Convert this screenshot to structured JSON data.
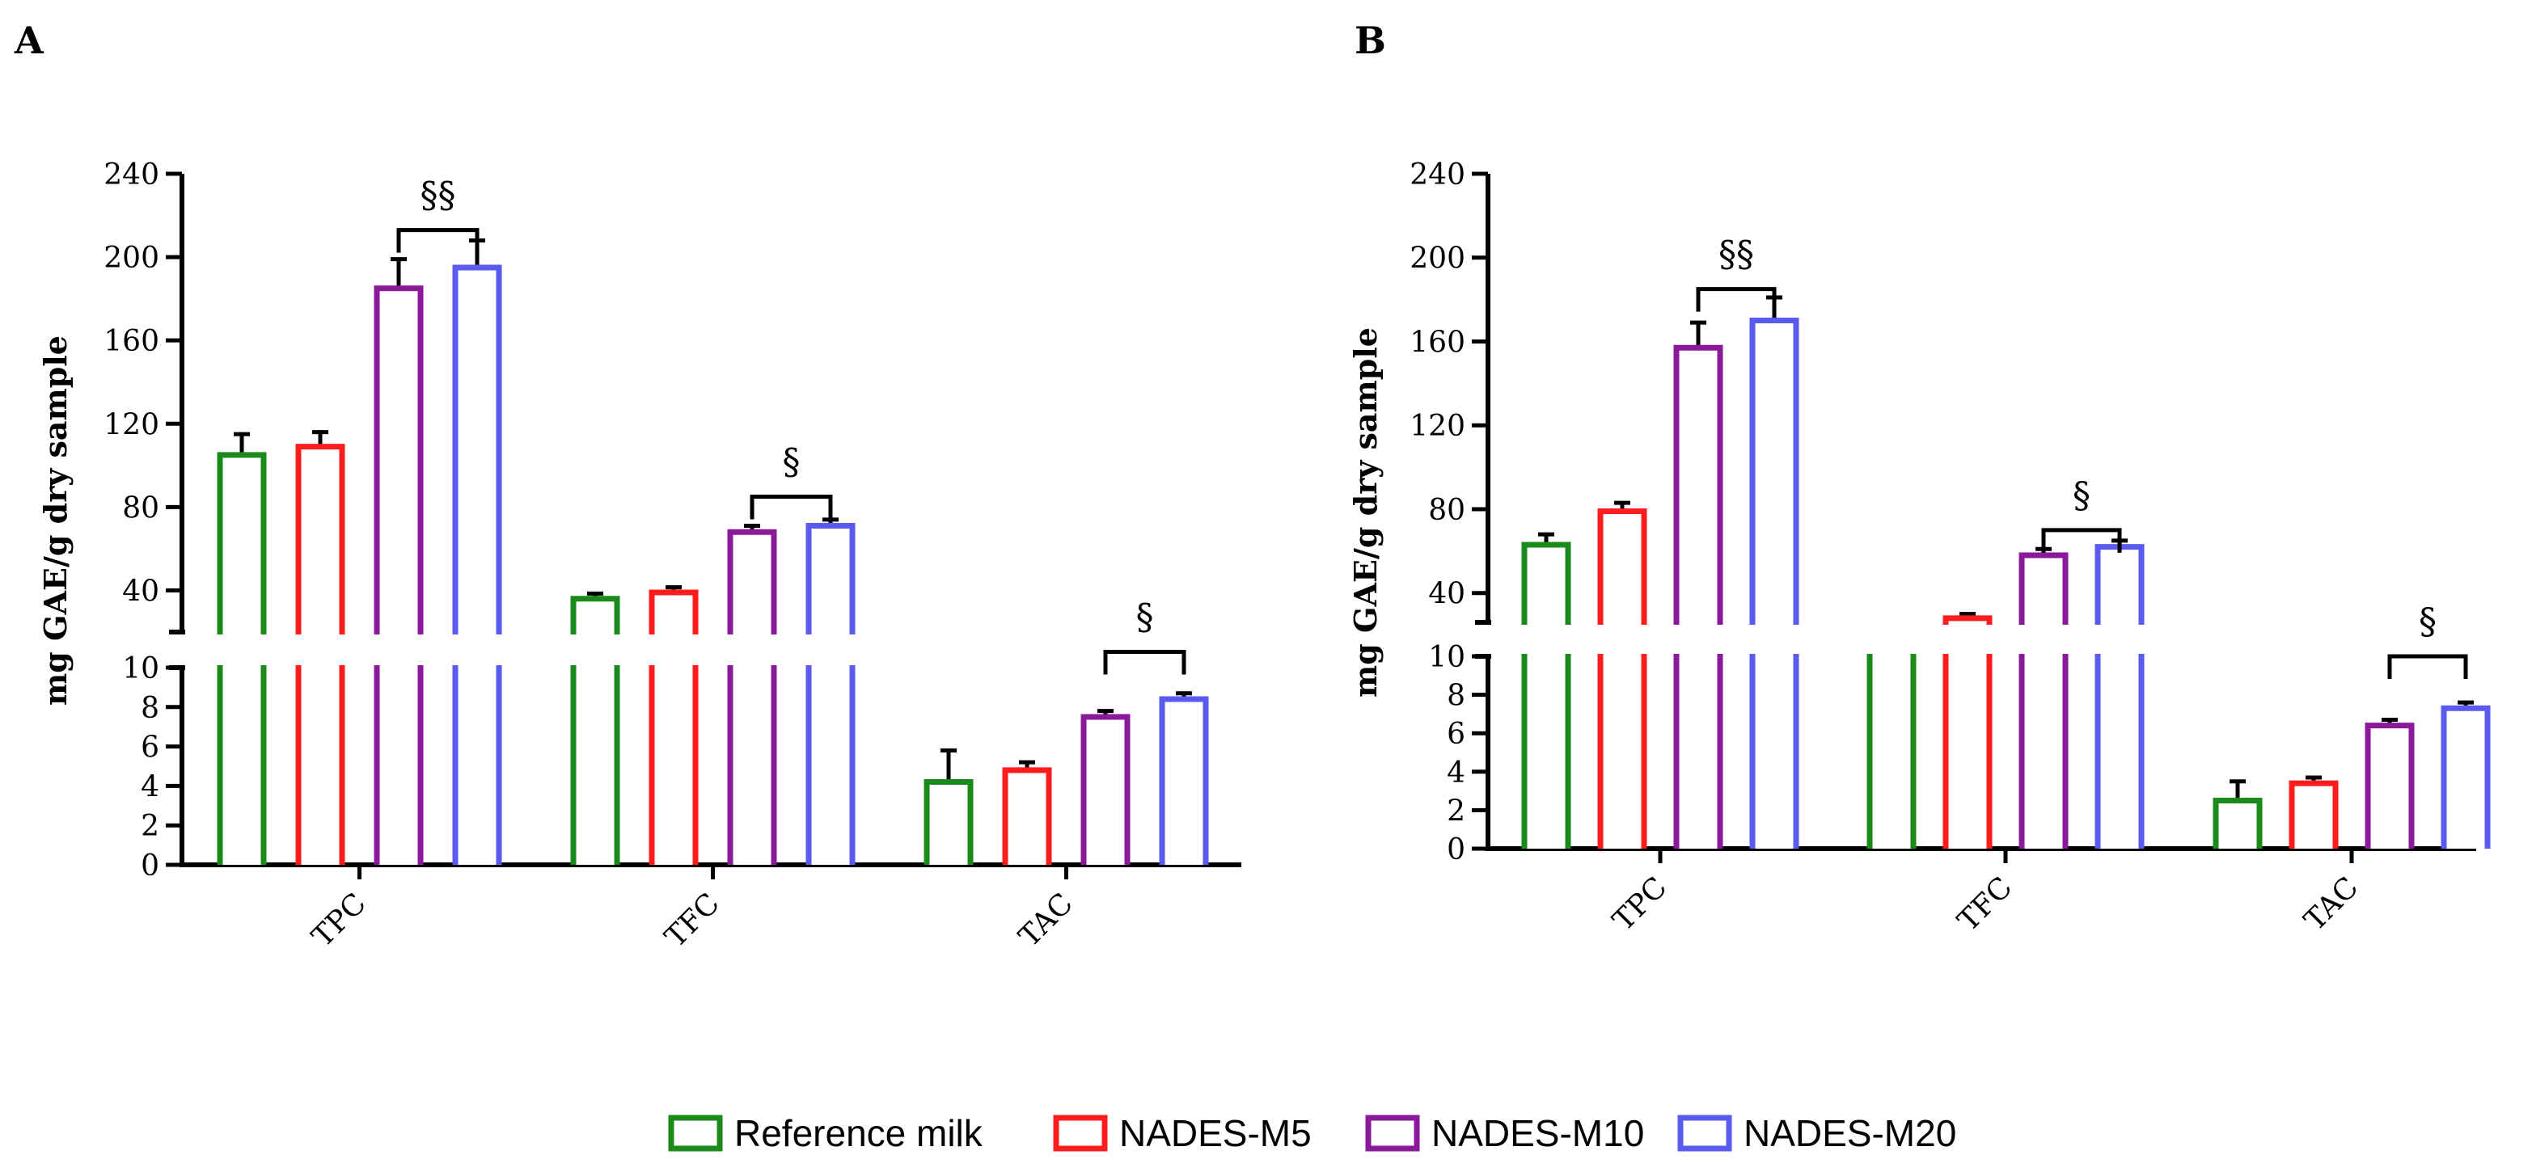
{
  "figure": {
    "legend": {
      "placement": "bottom-center",
      "entries": [
        {
          "label": "Reference milk",
          "color": "#1a8a1a"
        },
        {
          "label": "NADES-M5",
          "color": "#ff1c1c"
        },
        {
          "label": "NADES-M10",
          "color": "#8b1a9b"
        },
        {
          "label": "NADES-M20",
          "color": "#5a5aee"
        }
      ]
    }
  },
  "chart_data": [
    {
      "panel_label": "A",
      "type": "bar",
      "title": "",
      "xlabel": "",
      "ylabel": "mg GAE/g dry sample",
      "categories": [
        "TPC",
        "TFC",
        "TAC"
      ],
      "broken_axis": true,
      "ylim_lower": [
        0,
        10
      ],
      "ylim_upper": [
        20,
        240
      ],
      "yticks_lower": [
        "0",
        "2",
        "4",
        "6",
        "8",
        "10"
      ],
      "yticks_upper": [
        "40",
        "80",
        "120",
        "160",
        "200",
        "240"
      ],
      "series": [
        {
          "name": "Reference milk",
          "color": "#1a8a1a",
          "values": [
            105,
            36,
            4.2
          ],
          "errors": [
            10,
            2.5,
            1.6
          ]
        },
        {
          "name": "NADES-M5",
          "color": "#ff1c1c",
          "values": [
            109,
            39,
            4.8
          ],
          "errors": [
            7,
            2.5,
            0.4
          ]
        },
        {
          "name": "NADES-M10",
          "color": "#8b1a9b",
          "values": [
            185,
            68,
            7.5
          ],
          "errors": [
            14,
            3,
            0.3
          ]
        },
        {
          "name": "NADES-M20",
          "color": "#5a5aee",
          "values": [
            195,
            71,
            8.4
          ],
          "errors": [
            13,
            3,
            0.3
          ]
        }
      ],
      "annotations": [
        {
          "text": "§§",
          "category": 0,
          "between": [
            2,
            3
          ],
          "y": 213
        },
        {
          "text": "§",
          "category": 1,
          "between": [
            2,
            3
          ],
          "y": 85
        },
        {
          "text": "§",
          "category": 2,
          "between": [
            2,
            3
          ],
          "y": 10.5
        }
      ],
      "grid": false,
      "legend": "bottom"
    },
    {
      "panel_label": "B",
      "type": "bar",
      "title": "",
      "xlabel": "",
      "ylabel": "mg GAE/g dry sample",
      "categories": [
        "TPC",
        "TFC",
        "TAC"
      ],
      "broken_axis": true,
      "ylim_lower": [
        0,
        10
      ],
      "ylim_upper": [
        26,
        240
      ],
      "yticks_lower": [
        "0",
        "2",
        "4",
        "6",
        "8",
        "10"
      ],
      "yticks_upper": [
        "40",
        "80",
        "120",
        "160",
        "200",
        "240"
      ],
      "series": [
        {
          "name": "Reference milk",
          "color": "#1a8a1a",
          "values": [
            63,
            21,
            2.5
          ],
          "errors": [
            5,
            1.5,
            1
          ]
        },
        {
          "name": "NADES-M5",
          "color": "#ff1c1c",
          "values": [
            79,
            28,
            3.4
          ],
          "errors": [
            4,
            2,
            0.3
          ]
        },
        {
          "name": "NADES-M10",
          "color": "#8b1a9b",
          "values": [
            157,
            58,
            6.4
          ],
          "errors": [
            12,
            3,
            0.3
          ]
        },
        {
          "name": "NADES-M20",
          "color": "#5a5aee",
          "values": [
            170,
            62,
            7.3
          ],
          "errors": [
            11,
            3,
            0.3
          ]
        }
      ],
      "annotations": [
        {
          "text": "§§",
          "category": 0,
          "between": [
            2,
            3
          ],
          "y": 185
        },
        {
          "text": "§",
          "category": 1,
          "between": [
            2,
            3
          ],
          "y": 70
        },
        {
          "text": "§",
          "category": 2,
          "between": [
            2,
            3
          ],
          "y": 10
        }
      ],
      "grid": false,
      "legend": "bottom"
    }
  ]
}
